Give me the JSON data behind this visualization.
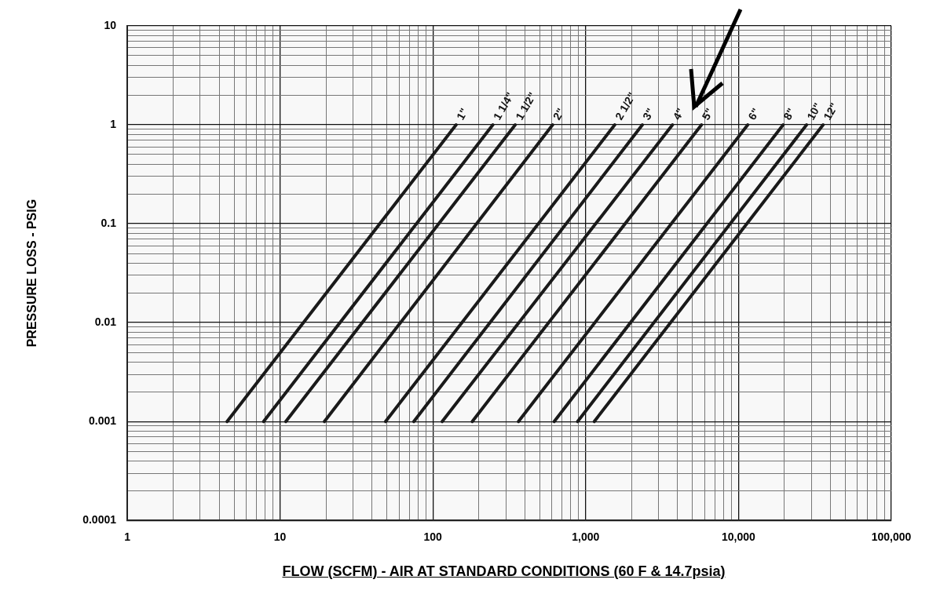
{
  "chart_data": {
    "type": "line",
    "xlabel": "FLOW (SCFM) - AIR AT STANDARD CONDITIONS (60 F & 14.7psia)",
    "ylabel": "PRESSURE LOSS - PSIG",
    "log": "xy",
    "grid": true,
    "marker": "none",
    "line_style": "solid",
    "xlim": [
      1,
      100000
    ],
    "xticks": [
      {
        "value": 1,
        "label": "1"
      },
      {
        "value": 2,
        "label": null
      },
      {
        "value": 3,
        "label": null
      },
      {
        "value": 4,
        "label": null
      },
      {
        "value": 5,
        "label": null
      },
      {
        "value": 6,
        "label": null
      },
      {
        "value": 7,
        "label": null
      },
      {
        "value": 8,
        "label": null
      },
      {
        "value": 9,
        "label": null
      },
      {
        "value": 10,
        "label": "10"
      },
      {
        "value": 20,
        "label": null
      },
      {
        "value": 30,
        "label": null
      },
      {
        "value": 40,
        "label": null
      },
      {
        "value": 50,
        "label": null
      },
      {
        "value": 60,
        "label": null
      },
      {
        "value": 70,
        "label": null
      },
      {
        "value": 80,
        "label": null
      },
      {
        "value": 90,
        "label": null
      },
      {
        "value": 100,
        "label": "100"
      },
      {
        "value": 200,
        "label": null
      },
      {
        "value": 300,
        "label": null
      },
      {
        "value": 400,
        "label": null
      },
      {
        "value": 500,
        "label": null
      },
      {
        "value": 600,
        "label": null
      },
      {
        "value": 700,
        "label": null
      },
      {
        "value": 800,
        "label": null
      },
      {
        "value": 900,
        "label": null
      },
      {
        "value": 1000,
        "label": "1,000"
      },
      {
        "value": 2000,
        "label": null
      },
      {
        "value": 3000,
        "label": null
      },
      {
        "value": 4000,
        "label": null
      },
      {
        "value": 5000,
        "label": null
      },
      {
        "value": 6000,
        "label": null
      },
      {
        "value": 7000,
        "label": null
      },
      {
        "value": 8000,
        "label": null
      },
      {
        "value": 9000,
        "label": null
      },
      {
        "value": 10000,
        "label": "10,000"
      },
      {
        "value": 20000,
        "label": null
      },
      {
        "value": 30000,
        "label": null
      },
      {
        "value": 40000,
        "label": null
      },
      {
        "value": 50000,
        "label": null
      },
      {
        "value": 60000,
        "label": null
      },
      {
        "value": 70000,
        "label": null
      },
      {
        "value": 80000,
        "label": null
      },
      {
        "value": 90000,
        "label": null
      },
      {
        "value": 100000,
        "label": "100,000"
      }
    ],
    "ylim": [
      0.0001,
      10
    ],
    "yticks": [
      0.0001,
      {
        "value": 0.0002,
        "label": null
      },
      {
        "value": 0.0003,
        "label": null
      },
      {
        "value": 0.0004,
        "label": null
      },
      {
        "value": 0.0005,
        "label": null
      },
      {
        "value": 0.0006,
        "label": null
      },
      {
        "value": 0.0007,
        "label": null
      },
      {
        "value": 0.0008,
        "label": null
      },
      {
        "value": 0.0009,
        "label": null
      },
      0.001,
      {
        "value": 0.002,
        "label": null
      },
      {
        "value": 0.003,
        "label": null
      },
      {
        "value": 0.004,
        "label": null
      },
      {
        "value": 0.005,
        "label": null
      },
      {
        "value": 0.006,
        "label": null
      },
      {
        "value": 0.007,
        "label": null
      },
      {
        "value": 0.008,
        "label": null
      },
      {
        "value": 0.009,
        "label": null
      },
      0.01,
      {
        "value": 0.02,
        "label": null
      },
      {
        "value": 0.03,
        "label": null
      },
      {
        "value": 0.04,
        "label": null
      },
      {
        "value": 0.05,
        "label": null
      },
      {
        "value": 0.06,
        "label": null
      },
      {
        "value": 0.07,
        "label": null
      },
      {
        "value": 0.08,
        "label": null
      },
      {
        "value": 0.09,
        "label": null
      },
      0.1,
      {
        "value": 0.2,
        "label": null
      },
      {
        "value": 0.3,
        "label": null
      },
      {
        "value": 0.4,
        "label": null
      },
      {
        "value": 0.5,
        "label": null
      },
      {
        "value": 0.6,
        "label": null
      },
      {
        "value": 0.7,
        "label": null
      },
      {
        "value": 0.8,
        "label": null
      },
      {
        "value": 0.9,
        "label": null
      },
      1,
      {
        "value": 2,
        "label": null
      },
      {
        "value": 3,
        "label": null
      },
      {
        "value": 4,
        "label": null
      },
      {
        "value": 5,
        "label": null
      },
      {
        "value": 6,
        "label": null
      },
      {
        "value": 7,
        "label": null
      },
      {
        "value": 8,
        "label": null
      },
      {
        "value": 9,
        "label": null
      },
      10
    ],
    "series": [
      {
        "name": "1\"",
        "color": "#1a1a1a",
        "x": [
          4.5,
          142
        ],
        "values": [
          0.001,
          1
        ]
      },
      {
        "name": "1 1/4\"",
        "color": "#1a1a1a",
        "x": [
          7.8,
          247
        ],
        "values": [
          0.001,
          1
        ]
      },
      {
        "name": "1 1/2\"",
        "color": "#1a1a1a",
        "x": [
          10.9,
          346
        ],
        "values": [
          0.001,
          1
        ]
      },
      {
        "name": "2\"",
        "color": "#1a1a1a",
        "x": [
          19.5,
          608
        ],
        "values": [
          0.001,
          1
        ]
      },
      {
        "name": "2 1/2\"",
        "color": "#1a1a1a",
        "x": [
          49,
          1550
        ],
        "values": [
          0.001,
          1
        ]
      },
      {
        "name": "3\"",
        "color": "#1a1a1a",
        "x": [
          75,
          2350
        ],
        "values": [
          0.001,
          1
        ]
      },
      {
        "name": "4\"",
        "color": "#1a1a1a",
        "x": [
          115,
          3700
        ],
        "values": [
          0.001,
          1
        ]
      },
      {
        "name": "5\"",
        "color": "#1a1a1a",
        "x": [
          181,
          5730
        ],
        "values": [
          0.001,
          1
        ]
      },
      {
        "name": "6\"",
        "color": "#1a1a1a",
        "x": [
          363,
          11500
        ],
        "values": [
          0.001,
          1
        ]
      },
      {
        "name": "8\"",
        "color": "#1a1a1a",
        "x": [
          622,
          19600
        ],
        "values": [
          0.001,
          1
        ]
      },
      {
        "name": "10\"",
        "color": "#1a1a1a",
        "x": [
          885,
          27900
        ],
        "values": [
          0.001,
          1
        ]
      },
      {
        "name": "12\"",
        "color": "#1a1a1a",
        "x": [
          1138,
          35800
        ],
        "values": [
          0.001,
          1
        ]
      }
    ]
  }
}
